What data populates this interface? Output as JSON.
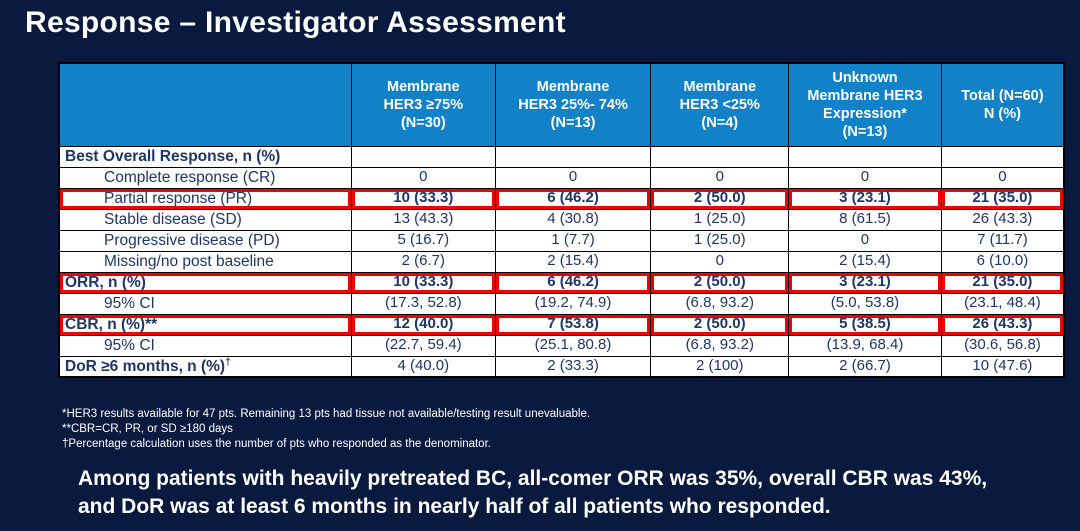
{
  "slide": {
    "title": "Response – Investigator Assessment",
    "footnotes": [
      "*HER3 results available for 47 pts. Remaining 13 pts had tissue not available/testing result unevaluable.",
      "**CBR=CR, PR, or SD ≥180 days",
      "†Percentage calculation uses the number of pts who responded as the denominator."
    ],
    "summary_lines": [
      "Among patients with heavily pretreated BC, all-comer ORR was 35%, overall CBR was 43%,",
      "and DoR was at least 6 months in nearly half of all patients who responded."
    ]
  },
  "table": {
    "columns": [
      "",
      "Membrane\nHER3 ≥75%\n(N=30)",
      "Membrane\nHER3 25%- 74%\n(N=13)",
      "Membrane\nHER3 <25%\n(N=4)",
      "Unknown\nMembrane HER3\nExpression*\n(N=13)",
      "Total (N=60)\nN (%)"
    ],
    "rows": [
      {
        "label": "Best Overall Response, n (%)",
        "indent": false,
        "highlight": false,
        "values": [
          "",
          "",
          "",
          "",
          ""
        ]
      },
      {
        "label": "Complete response (CR)",
        "indent": true,
        "highlight": false,
        "values": [
          "0",
          "0",
          "0",
          "0",
          "0"
        ]
      },
      {
        "label": "Partial response (PR)",
        "indent": true,
        "highlight": true,
        "values": [
          "10 (33.3)",
          "6 (46.2)",
          "2 (50.0)",
          "3 (23.1)",
          "21 (35.0)"
        ]
      },
      {
        "label": "Stable disease (SD)",
        "indent": true,
        "highlight": false,
        "values": [
          "13 (43.3)",
          "4 (30.8)",
          "1 (25.0)",
          "8 (61.5)",
          "26 (43.3)"
        ]
      },
      {
        "label": "Progressive disease (PD)",
        "indent": true,
        "highlight": false,
        "values": [
          "5 (16.7)",
          "1 (7.7)",
          "1 (25.0)",
          "0",
          "7 (11.7)"
        ]
      },
      {
        "label": "Missing/no post baseline",
        "indent": true,
        "highlight": false,
        "values": [
          "2 (6.7)",
          "2 (15.4)",
          "0",
          "2 (15.4)",
          "6 (10.0)"
        ]
      },
      {
        "label": "ORR, n (%)",
        "indent": false,
        "highlight": true,
        "values": [
          "10 (33.3)",
          "6 (46.2)",
          "2 (50.0)",
          "3 (23.1)",
          "21 (35.0)"
        ]
      },
      {
        "label": "95% CI",
        "indent": true,
        "highlight": false,
        "values": [
          "(17.3, 52.8)",
          "(19.2, 74.9)",
          "(6.8, 93.2)",
          "(5.0, 53.8)",
          "(23.1, 48.4)"
        ]
      },
      {
        "label": "CBR, n (%)**",
        "indent": false,
        "highlight": true,
        "values": [
          "12 (40.0)",
          "7 (53.8)",
          "2 (50.0)",
          "5 (38.5)",
          "26 (43.3)"
        ]
      },
      {
        "label": "95% CI",
        "indent": true,
        "highlight": false,
        "values": [
          "(22.7, 59.4)",
          "(25.1, 80.8)",
          "(6.8, 93.2)",
          "(13.9, 68.4)",
          "(30.6, 56.8)"
        ]
      },
      {
        "label": "DoR ≥6 months, n (%)",
        "label_sup": "†",
        "indent": false,
        "highlight": false,
        "values": [
          "4 (40.0)",
          "2 (33.3)",
          "2 (100)",
          "2 (66.7)",
          "10 (47.6)"
        ]
      }
    ]
  },
  "colors": {
    "background": "#0A1A3E",
    "header_blue": "#1182C7",
    "body_text": "#1F3566",
    "highlight_red": "#F10000",
    "text_white": "#FFFFFF"
  }
}
